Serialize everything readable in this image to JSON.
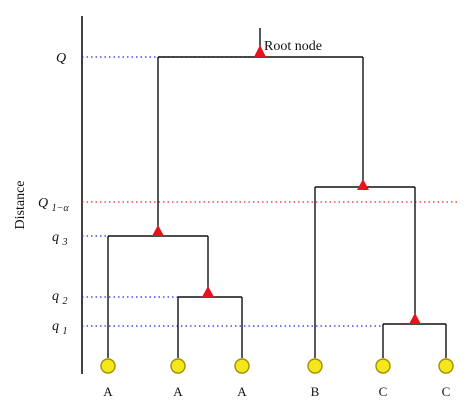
{
  "figure": {
    "ylabel": "Distance",
    "root_label": "Root node",
    "levels": [
      {
        "id": "Q",
        "base": "Q",
        "sub": ""
      },
      {
        "id": "Q1a",
        "base": "Q",
        "sub": "1−α"
      },
      {
        "id": "q3",
        "base": "q",
        "sub": "3"
      },
      {
        "id": "q2",
        "base": "q",
        "sub": "2"
      },
      {
        "id": "q1",
        "base": "q",
        "sub": "1"
      }
    ],
    "leaves": [
      "A",
      "A",
      "A",
      "B",
      "C",
      "C"
    ]
  },
  "colors": {
    "line": "#111111",
    "guide_blue": "#2a2ad6",
    "guide_red": "#e0282d",
    "node_marker": "#e3141c",
    "leaf_fill": "#f4e81c",
    "leaf_stroke": "#a38f00"
  }
}
